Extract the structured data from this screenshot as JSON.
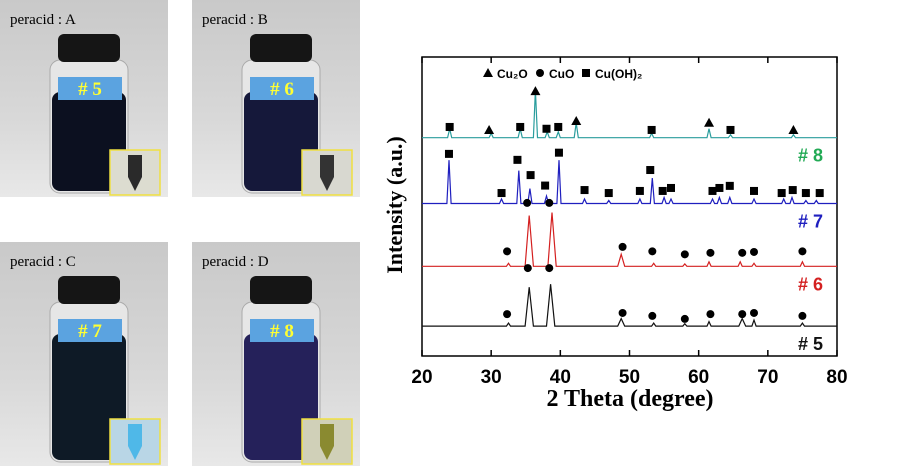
{
  "panels": [
    {
      "title": "peracid : A",
      "tag": "# 5"
    },
    {
      "title": "peracid : B",
      "tag": "# 6"
    },
    {
      "title": "peracid : C",
      "tag": "# 7"
    },
    {
      "title": "peracid : D",
      "tag": "# 8"
    }
  ],
  "chart_data": {
    "type": "line",
    "x_label": "2 Theta (degree)",
    "y_label": "Intensity (a.u.)",
    "xlim": [
      20,
      80
    ],
    "xticks": [
      20,
      30,
      40,
      50,
      60,
      70,
      80
    ],
    "ylim": [
      0,
      100
    ],
    "series": [
      {
        "name": "# 8",
        "color": "#2a9d9d",
        "label_color": "#22aa55",
        "x": [
          20,
          23.7,
          24,
          24.3,
          29.7,
          30,
          30.3,
          33.9,
          34.2,
          34.5,
          36.1,
          36.4,
          36.7,
          37.8,
          38.1,
          38.4,
          39.4,
          39.7,
          40,
          42,
          42.3,
          42.6,
          52.9,
          53.2,
          53.5,
          61.2,
          61.5,
          61.8,
          64.3,
          64.6,
          64.9,
          73.4,
          73.7,
          74,
          80
        ],
        "values": [
          73,
          73,
          76,
          73,
          73,
          74.5,
          73,
          73,
          76,
          73,
          73,
          89,
          73,
          73,
          75,
          73,
          73,
          75,
          73,
          73,
          78,
          73,
          73,
          74.5,
          73,
          73,
          76,
          73,
          73,
          74,
          73,
          73,
          74,
          73,
          73
        ]
      },
      {
        "name": "# 7",
        "color": "#1f1fbf",
        "label_color": "#1f1fbf",
        "x": [
          20,
          23.6,
          23.9,
          24.2,
          31.2,
          31.5,
          31.8,
          33.7,
          34,
          34.3,
          35.3,
          35.6,
          35.9,
          37.7,
          38,
          38.3,
          39.5,
          39.8,
          40.1,
          43.2,
          43.5,
          43.8,
          46.7,
          47,
          47.3,
          51.2,
          51.5,
          51.8,
          53,
          53.3,
          53.6,
          54.7,
          55,
          55.3,
          55.7,
          56,
          56.3,
          61.7,
          62,
          62.3,
          62.7,
          63,
          63.3,
          64.2,
          64.5,
          64.8,
          67.7,
          68,
          68.3,
          72,
          72.3,
          72.6,
          73.2,
          73.5,
          73.8,
          75.2,
          75.5,
          75.8,
          76.7,
          77,
          77.3,
          80
        ],
        "values": [
          51,
          51,
          65.5,
          51,
          51,
          52.5,
          51,
          51,
          62,
          51,
          51,
          56,
          51,
          51,
          53.5,
          51,
          51,
          65.5,
          51,
          51,
          52.5,
          51,
          51,
          52,
          51,
          51,
          52.5,
          51,
          51,
          59.5,
          51,
          51,
          53,
          51,
          51,
          52.5,
          51,
          51,
          52.5,
          51,
          51,
          53,
          51,
          51,
          53,
          51,
          51,
          52.5,
          51,
          51,
          52.5,
          51,
          51,
          53,
          51,
          51,
          52,
          51,
          51,
          52,
          51,
          51
        ]
      },
      {
        "name": "# 6",
        "color": "#d42020",
        "label_color": "#d42020",
        "x": [
          20,
          32.2,
          32.5,
          32.8,
          34.9,
          35.5,
          36.1,
          38.2,
          38.8,
          39.4,
          48.3,
          48.8,
          49.3,
          53.2,
          53.5,
          53.8,
          57.7,
          58,
          58.3,
          61.2,
          61.5,
          61.8,
          65.7,
          66,
          66.3,
          67.7,
          68,
          68.3,
          74.7,
          75,
          75.3,
          80
        ],
        "values": [
          30,
          30,
          31,
          30,
          30,
          47,
          30,
          30,
          48,
          30,
          30,
          34,
          30,
          30,
          31,
          30,
          30,
          30.8,
          30,
          30,
          31.5,
          30,
          30,
          31.5,
          30,
          30,
          31,
          30,
          30,
          31.5,
          30,
          30
        ]
      },
      {
        "name": "# 5",
        "color": "#111111",
        "label_color": "#111111",
        "x": [
          20,
          32.2,
          32.5,
          32.8,
          34.9,
          35.5,
          36.1,
          38,
          38.6,
          39.2,
          48.3,
          48.8,
          49.3,
          53.2,
          53.5,
          53.8,
          57.7,
          58,
          58.3,
          61.2,
          61.5,
          61.8,
          65.8,
          66.3,
          66.8,
          67.7,
          68,
          68.3,
          74.7,
          75,
          75.3,
          80
        ],
        "values": [
          10,
          10,
          11,
          10,
          10,
          23,
          10,
          10,
          24,
          10,
          10,
          12.5,
          10,
          10,
          11,
          10,
          10,
          10.8,
          10,
          10,
          11.5,
          10,
          10,
          12.5,
          10,
          10,
          12,
          10,
          10,
          11,
          10,
          10
        ]
      }
    ],
    "markers": [
      {
        "name": "Cu₂O",
        "shape": "triangle",
        "x": [
          29.7,
          36.4,
          42.3,
          61.5,
          73.7
        ],
        "y": [
          75.6,
          88.6,
          78.6,
          78,
          75.6
        ]
      },
      {
        "name": "CuO",
        "shape": "circle",
        "x": [
          32.3,
          35.2,
          38.4,
          49,
          53.3,
          58,
          61.7,
          66.3,
          68,
          75,
          32.3,
          35.3,
          38.4,
          49,
          53.3,
          58,
          61.7,
          66.3,
          68,
          75
        ],
        "y": [
          35,
          51.2,
          51.2,
          36.5,
          35,
          34,
          34.5,
          34.5,
          34.8,
          35,
          14,
          29.4,
          29.4,
          14.4,
          13.4,
          12.4,
          14,
          14,
          14.4,
          13.4
        ]
      },
      {
        "name": "Cu(OH)₂",
        "shape": "square",
        "x": [
          24,
          34.2,
          38,
          39.7,
          53.2,
          64.6,
          23.9,
          31.5,
          33.8,
          35.7,
          37.8,
          39.8,
          43.5,
          47,
          51.5,
          53,
          54.8,
          56,
          62,
          63,
          64.5,
          68,
          72,
          73.6,
          75.5,
          77.5
        ],
        "y": [
          76.6,
          76.6,
          76,
          76.6,
          75.6,
          75.6,
          67.6,
          54.5,
          65.6,
          60.5,
          57,
          68,
          55.5,
          54.5,
          55.2,
          62.2,
          55.2,
          56.2,
          55.2,
          56.2,
          56.9,
          55.2,
          54.5,
          55.5,
          54.5,
          54.5
        ]
      }
    ]
  }
}
